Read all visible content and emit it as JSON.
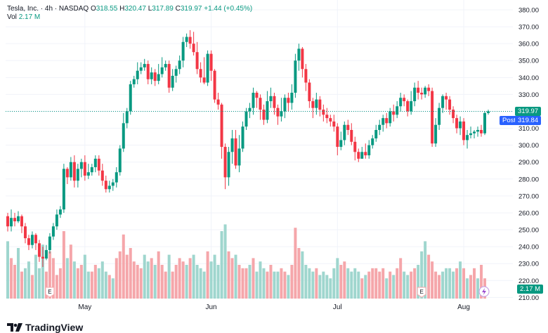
{
  "header": {
    "symbol": "Tesla, Inc. · 4h · NASDAQ",
    "o_label": "O",
    "o_value": "318.55",
    "h_label": "H",
    "h_value": "320.47",
    "l_label": "L",
    "l_value": "317.89",
    "c_label": "C",
    "c_value": "319.97",
    "change": "+1.44 (+0.45%)",
    "vol_label": "Vol",
    "vol_value": "2.17 M"
  },
  "badges": {
    "last_price": "319.97",
    "post_label": "Post",
    "post_price": "319.84",
    "volume": "2.17 M"
  },
  "brand": {
    "name": "TradingView"
  },
  "colors": {
    "up": "#089981",
    "down": "#f23645",
    "up_vol": "#9fd6ce",
    "down_vol": "#f5a6aa",
    "post": "#2962ff"
  },
  "chart_data": {
    "type": "candlestick",
    "title": "Tesla, Inc. · 4h · NASDAQ",
    "y_ticks": [
      "380.00",
      "370.00",
      "360.00",
      "350.00",
      "340.00",
      "330.00",
      "320.00",
      "310.00",
      "300.00",
      "290.00",
      "280.00",
      "270.00",
      "260.00",
      "250.00",
      "240.00",
      "230.00",
      "220.00",
      "210.00"
    ],
    "y_range": [
      210,
      380
    ],
    "x_ticks": [
      {
        "label": "May",
        "index": 22
      },
      {
        "label": "Jun",
        "index": 58
      },
      {
        "label": "Jul",
        "index": 94
      },
      {
        "label": "Aug",
        "index": 130
      }
    ],
    "last_close": 319.97,
    "post_price": 319.84,
    "events": [
      {
        "label": "E",
        "index": 12
      },
      {
        "label": "E",
        "index": 118
      }
    ],
    "candles": [
      [
        258,
        252,
        260,
        249
      ],
      [
        252,
        257,
        262,
        249
      ],
      [
        257,
        255,
        260,
        252
      ],
      [
        255,
        258,
        261,
        254
      ],
      [
        258,
        252,
        259,
        248
      ],
      [
        252,
        245,
        254,
        242
      ],
      [
        245,
        241,
        247,
        238
      ],
      [
        241,
        247,
        249,
        239
      ],
      [
        247,
        242,
        248,
        238
      ],
      [
        242,
        234,
        244,
        231
      ],
      [
        234,
        233,
        240,
        228
      ],
      [
        233,
        238,
        241,
        232
      ],
      [
        238,
        246,
        248,
        236
      ],
      [
        246,
        252,
        254,
        244
      ],
      [
        252,
        259,
        262,
        250
      ],
      [
        259,
        262,
        264,
        257
      ],
      [
        262,
        286,
        289,
        260
      ],
      [
        286,
        281,
        287,
        277
      ],
      [
        281,
        290,
        293,
        279
      ],
      [
        290,
        279,
        294,
        275
      ],
      [
        279,
        286,
        289,
        275
      ],
      [
        286,
        290,
        292,
        281
      ],
      [
        290,
        282,
        294,
        279
      ],
      [
        282,
        284,
        289,
        280
      ],
      [
        284,
        287,
        289,
        282
      ],
      [
        287,
        292,
        294,
        284
      ],
      [
        292,
        285,
        294,
        282
      ],
      [
        285,
        279,
        289,
        276
      ],
      [
        279,
        274,
        282,
        272
      ],
      [
        274,
        276,
        279,
        272
      ],
      [
        276,
        278,
        280,
        273
      ],
      [
        278,
        284,
        287,
        275
      ],
      [
        284,
        298,
        300,
        282
      ],
      [
        298,
        313,
        319,
        296
      ],
      [
        313,
        320,
        322,
        310
      ],
      [
        320,
        336,
        338,
        318
      ],
      [
        336,
        339,
        341,
        334
      ],
      [
        339,
        344,
        349,
        336
      ],
      [
        344,
        346,
        349,
        342
      ],
      [
        346,
        348,
        351,
        344
      ],
      [
        348,
        339,
        350,
        336
      ],
      [
        339,
        343,
        346,
        336
      ],
      [
        343,
        338,
        345,
        335
      ],
      [
        338,
        342,
        348,
        336
      ],
      [
        342,
        346,
        352,
        340
      ],
      [
        346,
        348,
        350,
        344
      ],
      [
        348,
        334,
        350,
        331
      ],
      [
        334,
        341,
        345,
        332
      ],
      [
        341,
        345,
        347,
        337
      ],
      [
        345,
        350,
        353,
        342
      ],
      [
        350,
        361,
        364,
        346
      ],
      [
        361,
        364,
        366,
        358
      ],
      [
        364,
        360,
        368,
        357
      ],
      [
        360,
        355,
        367,
        353
      ],
      [
        355,
        345,
        361,
        342
      ],
      [
        345,
        340,
        349,
        337
      ],
      [
        340,
        337,
        352,
        336
      ],
      [
        337,
        354,
        356,
        335
      ],
      [
        354,
        344,
        356,
        338
      ],
      [
        344,
        327,
        345,
        325
      ],
      [
        327,
        324,
        331,
        321
      ],
      [
        324,
        299,
        325,
        292
      ],
      [
        299,
        281,
        301,
        274
      ],
      [
        281,
        296,
        299,
        276
      ],
      [
        296,
        304,
        309,
        289
      ],
      [
        304,
        288,
        309,
        286
      ],
      [
        288,
        298,
        306,
        284
      ],
      [
        298,
        311,
        314,
        296
      ],
      [
        311,
        320,
        322,
        309
      ],
      [
        320,
        322,
        325,
        316
      ],
      [
        322,
        331,
        334,
        318
      ],
      [
        331,
        328,
        332,
        322
      ],
      [
        328,
        321,
        330,
        315
      ],
      [
        321,
        315,
        324,
        312
      ],
      [
        315,
        326,
        332,
        313
      ],
      [
        326,
        329,
        334,
        322
      ],
      [
        329,
        322,
        331,
        318
      ],
      [
        322,
        317,
        324,
        312
      ],
      [
        317,
        320,
        328,
        314
      ],
      [
        320,
        328,
        330,
        316
      ],
      [
        328,
        325,
        331,
        320
      ],
      [
        325,
        331,
        336,
        321
      ],
      [
        331,
        350,
        354,
        328
      ],
      [
        350,
        357,
        360,
        344
      ],
      [
        357,
        345,
        358,
        340
      ],
      [
        345,
        337,
        348,
        332
      ],
      [
        337,
        326,
        339,
        322
      ],
      [
        326,
        322,
        328,
        316
      ],
      [
        322,
        327,
        331,
        318
      ],
      [
        327,
        321,
        329,
        317
      ],
      [
        321,
        318,
        324,
        314
      ],
      [
        318,
        316,
        322,
        313
      ],
      [
        316,
        314,
        318,
        311
      ],
      [
        314,
        311,
        318,
        308
      ],
      [
        311,
        299,
        313,
        294
      ],
      [
        299,
        303,
        308,
        297
      ],
      [
        303,
        312,
        314,
        300
      ],
      [
        312,
        309,
        315,
        306
      ],
      [
        309,
        302,
        313,
        300
      ],
      [
        302,
        296,
        305,
        291
      ],
      [
        296,
        292,
        298,
        290
      ],
      [
        292,
        296,
        299,
        292
      ],
      [
        296,
        294,
        301,
        292
      ],
      [
        294,
        300,
        303,
        292
      ],
      [
        300,
        304,
        306,
        298
      ],
      [
        304,
        309,
        312,
        302
      ],
      [
        309,
        312,
        315,
        306
      ],
      [
        312,
        316,
        318,
        308
      ],
      [
        316,
        313,
        319,
        310
      ],
      [
        313,
        320,
        322,
        311
      ],
      [
        320,
        318,
        324,
        314
      ],
      [
        318,
        323,
        326,
        316
      ],
      [
        323,
        328,
        331,
        320
      ],
      [
        328,
        326,
        330,
        323
      ],
      [
        326,
        320,
        327,
        317
      ],
      [
        320,
        326,
        332,
        318
      ],
      [
        326,
        334,
        337,
        323
      ],
      [
        334,
        331,
        338,
        327
      ],
      [
        331,
        330,
        334,
        327
      ],
      [
        330,
        334,
        335,
        328
      ],
      [
        334,
        332,
        336,
        329
      ],
      [
        332,
        301,
        334,
        299
      ],
      [
        301,
        312,
        316,
        299
      ],
      [
        312,
        322,
        325,
        309
      ],
      [
        322,
        329,
        330,
        319
      ],
      [
        329,
        327,
        331,
        321
      ],
      [
        327,
        321,
        329,
        318
      ],
      [
        321,
        316,
        323,
        313
      ],
      [
        316,
        310,
        318,
        307
      ],
      [
        310,
        314,
        317,
        306
      ],
      [
        314,
        303,
        316,
        300
      ],
      [
        303,
        306,
        309,
        298
      ],
      [
        306,
        307,
        311,
        304
      ],
      [
        307,
        308,
        309,
        304
      ],
      [
        308,
        309,
        311,
        305
      ],
      [
        309,
        307,
        312,
        305
      ],
      [
        307,
        319,
        320,
        306
      ],
      [
        319,
        320,
        321,
        318
      ]
    ],
    "volumes": [
      [
        1.7,
        1
      ],
      [
        1.2,
        0
      ],
      [
        1.0,
        0
      ],
      [
        1.5,
        1
      ],
      [
        0.8,
        0
      ],
      [
        0.9,
        1
      ],
      [
        1.1,
        1
      ],
      [
        0.7,
        0
      ],
      [
        1.3,
        1
      ],
      [
        0.9,
        1
      ],
      [
        1.6,
        1
      ],
      [
        0.8,
        0
      ],
      [
        1.4,
        0
      ],
      [
        1.2,
        0
      ],
      [
        0.7,
        0
      ],
      [
        0.9,
        0
      ],
      [
        2.0,
        0
      ],
      [
        1.2,
        1
      ],
      [
        1.6,
        0
      ],
      [
        1.1,
        1
      ],
      [
        0.9,
        0
      ],
      [
        1.0,
        0
      ],
      [
        1.3,
        1
      ],
      [
        0.8,
        1
      ],
      [
        0.8,
        0
      ],
      [
        1.0,
        0
      ],
      [
        0.9,
        1
      ],
      [
        1.1,
        1
      ],
      [
        0.8,
        1
      ],
      [
        0.7,
        0
      ],
      [
        0.6,
        1
      ],
      [
        1.2,
        0
      ],
      [
        1.4,
        0
      ],
      [
        1.9,
        0
      ],
      [
        1.3,
        0
      ],
      [
        1.5,
        0
      ],
      [
        1.1,
        0
      ],
      [
        1.0,
        0
      ],
      [
        0.9,
        0
      ],
      [
        1.3,
        1
      ],
      [
        1.1,
        1
      ],
      [
        1.2,
        0
      ],
      [
        1.0,
        1
      ],
      [
        1.4,
        0
      ],
      [
        1.0,
        0
      ],
      [
        0.8,
        0
      ],
      [
        1.3,
        1
      ],
      [
        0.8,
        0
      ],
      [
        1.0,
        0
      ],
      [
        1.2,
        0
      ],
      [
        1.1,
        0
      ],
      [
        1.0,
        1
      ],
      [
        1.2,
        0
      ],
      [
        1.3,
        1
      ],
      [
        1.0,
        1
      ],
      [
        0.9,
        1
      ],
      [
        0.8,
        1
      ],
      [
        1.4,
        0
      ],
      [
        1.1,
        1
      ],
      [
        1.3,
        1
      ],
      [
        1.0,
        1
      ],
      [
        2.0,
        1
      ],
      [
        2.2,
        1
      ],
      [
        1.4,
        0
      ],
      [
        1.2,
        0
      ],
      [
        1.3,
        1
      ],
      [
        1.0,
        0
      ],
      [
        0.9,
        0
      ],
      [
        0.9,
        0
      ],
      [
        1.0,
        1
      ],
      [
        1.2,
        0
      ],
      [
        0.8,
        1
      ],
      [
        1.1,
        1
      ],
      [
        0.9,
        1
      ],
      [
        0.8,
        0
      ],
      [
        1.0,
        0
      ],
      [
        0.8,
        1
      ],
      [
        0.8,
        1
      ],
      [
        0.9,
        0
      ],
      [
        0.8,
        0
      ],
      [
        0.7,
        1
      ],
      [
        1.0,
        0
      ],
      [
        2.1,
        0
      ],
      [
        1.5,
        0
      ],
      [
        1.4,
        1
      ],
      [
        1.0,
        1
      ],
      [
        0.9,
        1
      ],
      [
        0.8,
        1
      ],
      [
        0.9,
        0
      ],
      [
        0.7,
        1
      ],
      [
        0.8,
        1
      ],
      [
        0.7,
        1
      ],
      [
        0.6,
        1
      ],
      [
        0.9,
        1
      ],
      [
        1.2,
        1
      ],
      [
        1.0,
        0
      ],
      [
        1.1,
        0
      ],
      [
        0.9,
        1
      ],
      [
        0.8,
        1
      ],
      [
        0.9,
        1
      ],
      [
        0.8,
        1
      ],
      [
        0.6,
        0
      ],
      [
        0.7,
        1
      ],
      [
        0.8,
        0
      ],
      [
        0.9,
        0
      ],
      [
        0.9,
        0
      ],
      [
        0.8,
        0
      ],
      [
        0.9,
        0
      ],
      [
        0.6,
        1
      ],
      [
        0.8,
        0
      ],
      [
        0.7,
        1
      ],
      [
        0.9,
        0
      ],
      [
        1.2,
        0
      ],
      [
        0.8,
        1
      ],
      [
        0.7,
        1
      ],
      [
        0.8,
        0
      ],
      [
        0.9,
        0
      ],
      [
        1.0,
        1
      ],
      [
        1.4,
        1
      ],
      [
        1.7,
        1
      ],
      [
        1.3,
        0
      ],
      [
        1.1,
        0
      ],
      [
        0.8,
        0
      ],
      [
        0.7,
        0
      ],
      [
        0.8,
        1
      ],
      [
        0.9,
        1
      ],
      [
        0.9,
        1
      ],
      [
        0.8,
        1
      ],
      [
        0.9,
        0
      ],
      [
        1.1,
        1
      ],
      [
        0.9,
        0
      ],
      [
        0.6,
        1
      ],
      [
        0.7,
        0
      ],
      [
        0.9,
        0
      ],
      [
        0.6,
        1
      ],
      [
        1.0,
        0
      ],
      [
        0.6,
        0
      ]
    ]
  }
}
